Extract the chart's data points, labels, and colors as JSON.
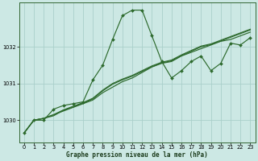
{
  "xlabel": "Graphe pression niveau de la mer (hPa)",
  "bg_color": "#cce8e4",
  "grid_color": "#aacfca",
  "line_color": "#2d6a2d",
  "x_ticks": [
    0,
    1,
    2,
    3,
    4,
    5,
    6,
    7,
    8,
    9,
    10,
    11,
    12,
    13,
    14,
    15,
    16,
    17,
    18,
    19,
    20,
    21,
    22,
    23
  ],
  "ylim": [
    1029.4,
    1033.2
  ],
  "xlim": [
    -0.5,
    23.5
  ],
  "yticks": [
    1030,
    1031,
    1032
  ],
  "ytick_labels": [
    "1030",
    "1031",
    "1032"
  ],
  "series": [
    [
      1029.65,
      1030.0,
      1030.0,
      1030.3,
      1030.4,
      1030.45,
      1030.5,
      1031.1,
      1031.5,
      1032.2,
      1032.85,
      1033.0,
      1033.0,
      1032.3,
      1031.6,
      1031.15,
      1031.35,
      1031.6,
      1031.75,
      1031.35,
      1031.55,
      1032.1,
      1032.05,
      1032.25
    ],
    [
      1029.65,
      1030.0,
      1030.05,
      1030.15,
      1030.25,
      1030.35,
      1030.45,
      1030.55,
      1030.75,
      1030.9,
      1031.05,
      1031.15,
      1031.3,
      1031.45,
      1031.55,
      1031.6,
      1031.75,
      1031.85,
      1031.95,
      1032.05,
      1032.15,
      1032.2,
      1032.3,
      1032.4
    ],
    [
      1029.65,
      1030.0,
      1030.05,
      1030.15,
      1030.28,
      1030.38,
      1030.48,
      1030.6,
      1030.82,
      1031.0,
      1031.12,
      1031.22,
      1031.35,
      1031.48,
      1031.58,
      1031.64,
      1031.78,
      1031.9,
      1032.02,
      1032.08,
      1032.18,
      1032.28,
      1032.38,
      1032.48
    ],
    [
      1029.65,
      1030.0,
      1030.05,
      1030.12,
      1030.27,
      1030.36,
      1030.46,
      1030.58,
      1030.8,
      1030.98,
      1031.1,
      1031.2,
      1031.33,
      1031.46,
      1031.56,
      1031.62,
      1031.76,
      1031.88,
      1032.0,
      1032.06,
      1032.16,
      1032.26,
      1032.36,
      1032.46
    ]
  ]
}
